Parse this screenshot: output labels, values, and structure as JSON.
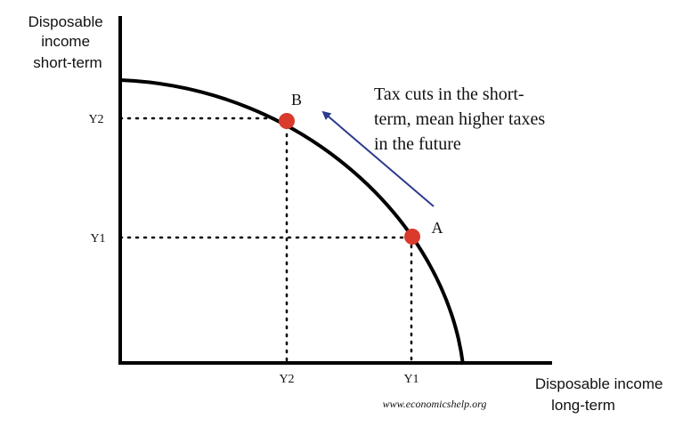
{
  "y_axis_label": [
    "Disposable",
    "income",
    "short-term"
  ],
  "x_axis_label": [
    "Disposable income",
    "long-term"
  ],
  "y_ticks": [
    "Y2",
    "Y1"
  ],
  "x_ticks": [
    "Y2",
    "Y1"
  ],
  "points": [
    {
      "label": "B",
      "color": "#d93a2b"
    },
    {
      "label": "A",
      "color": "#d93a2b"
    }
  ],
  "annotation": [
    "Tax cuts in the short-",
    "term, mean higher taxes",
    "in the future"
  ],
  "arrow_color": "#2c3a8f",
  "credit": "www.economicshelp.org"
}
